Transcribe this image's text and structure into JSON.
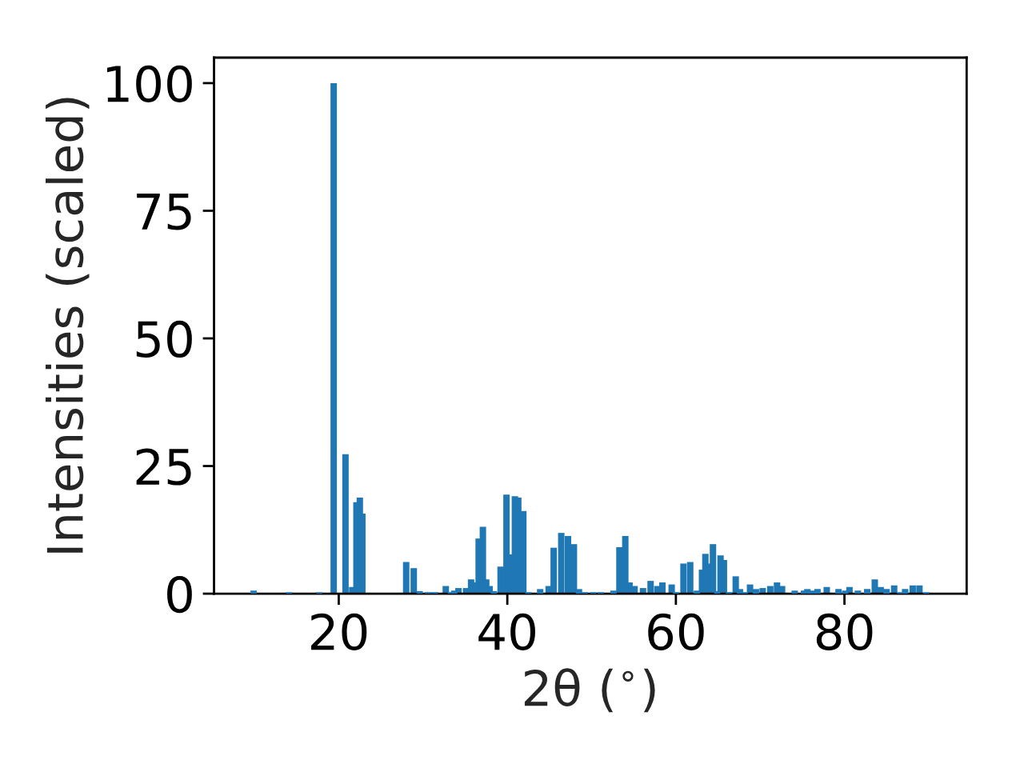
{
  "chart_data": {
    "type": "bar",
    "xlabel": "2θ ($^{∘}$)",
    "ylabel": "Intensities (scaled)",
    "x": [
      9.9,
      14.1,
      17.7,
      19.4,
      20.8,
      21.6,
      22.1,
      22.5,
      22.8,
      28.0,
      28.9,
      29.6,
      30.6,
      31.4,
      32.7,
      33.3,
      33.7,
      34.2,
      35.1,
      35.7,
      36.3,
      36.6,
      37.1,
      37.5,
      37.9,
      38.4,
      39.2,
      39.9,
      40.4,
      40.9,
      41.3,
      41.9,
      42.5,
      43.9,
      44.9,
      45.5,
      46.4,
      47.2,
      47.9,
      48.5,
      49.2,
      50.2,
      51.1,
      52.6,
      53.3,
      54.0,
      54.5,
      55.1,
      56.1,
      57.0,
      57.8,
      58.4,
      59.5,
      60.0,
      60.9,
      61.7,
      62.5,
      63.1,
      63.5,
      64.0,
      64.4,
      64.9,
      65.3,
      65.7,
      66.3,
      67.1,
      67.6,
      68.2,
      68.8,
      69.5,
      70.3,
      71.2,
      72.0,
      72.6,
      74.1,
      75.2,
      75.6,
      76.3,
      76.8,
      77.9,
      79.3,
      80.1,
      80.6,
      81.6,
      82.7,
      83.6,
      84.3,
      85.0,
      85.9,
      86.6,
      87.2,
      88.1,
      88.9,
      89.7
    ],
    "values": [
      0.6,
      0.3,
      0.3,
      100,
      27.3,
      1.3,
      17.9,
      18.8,
      15.7,
      6.2,
      5.0,
      0.5,
      0.3,
      0.3,
      1.5,
      0.3,
      0.6,
      1.1,
      1.1,
      2.8,
      2.2,
      10.8,
      13.1,
      2.8,
      1.5,
      0.5,
      5.3,
      19.4,
      7.7,
      19.1,
      18.8,
      16.2,
      0.3,
      0.9,
      1.5,
      9.0,
      11.9,
      11.3,
      9.7,
      0.9,
      0.3,
      0.3,
      0.3,
      0.6,
      9.1,
      11.3,
      2.2,
      1.5,
      1.1,
      2.5,
      1.5,
      2.2,
      1.8,
      0.3,
      5.9,
      6.2,
      0.6,
      4.7,
      7.8,
      5.9,
      9.7,
      0.5,
      7.5,
      6.6,
      0.3,
      3.4,
      0.9,
      0.3,
      1.8,
      0.9,
      1.1,
      1.5,
      2.2,
      1.5,
      0.6,
      0.6,
      0.9,
      0.6,
      0.9,
      1.3,
      0.9,
      0.6,
      1.3,
      0.6,
      0.9,
      2.8,
      1.3,
      0.9,
      1.6,
      0.3,
      0.9,
      1.6,
      1.6,
      0.3
    ],
    "color": "#1f77b4",
    "xlim": [
      5.2,
      94.5
    ],
    "xticks": [
      20,
      40,
      60,
      80
    ],
    "ylim": [
      0,
      105
    ],
    "yticks": [
      0,
      25,
      50,
      75,
      100
    ]
  }
}
